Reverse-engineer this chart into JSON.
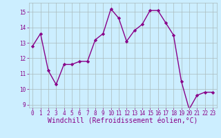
{
  "x": [
    0,
    1,
    2,
    3,
    4,
    5,
    6,
    7,
    8,
    9,
    10,
    11,
    12,
    13,
    14,
    15,
    16,
    17,
    18,
    19,
    20,
    21,
    22,
    23
  ],
  "y": [
    12.8,
    13.6,
    11.2,
    10.3,
    11.6,
    11.6,
    11.8,
    11.8,
    13.2,
    13.6,
    15.2,
    14.6,
    13.1,
    13.8,
    14.2,
    15.1,
    15.1,
    14.3,
    13.5,
    10.5,
    8.7,
    9.6,
    9.8,
    9.8
  ],
  "line_color": "#880088",
  "marker": "D",
  "marker_size": 2.2,
  "bg_color": "#cceeff",
  "grid_color": "#aabbbb",
  "xlabel": "Windchill (Refroidissement éolien,°C)",
  "ylim": [
    8.8,
    15.6
  ],
  "yticks": [
    9,
    10,
    11,
    12,
    13,
    14,
    15
  ],
  "xlim": [
    -0.5,
    23.5
  ],
  "xticks": [
    0,
    1,
    2,
    3,
    4,
    5,
    6,
    7,
    8,
    9,
    10,
    11,
    12,
    13,
    14,
    15,
    16,
    17,
    18,
    19,
    20,
    21,
    22,
    23
  ],
  "tick_color": "#880088",
  "tick_fontsize": 5.5,
  "xlabel_fontsize": 7.0,
  "linewidth": 1.0
}
